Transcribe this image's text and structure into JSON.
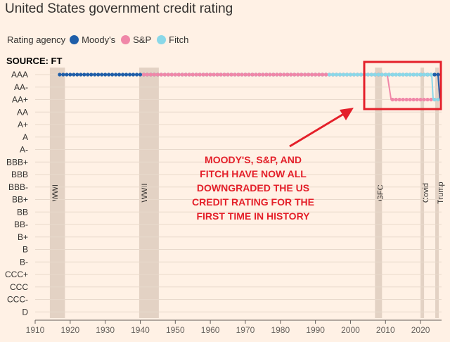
{
  "title": "United States government credit rating",
  "legend": {
    "title": "Rating agency",
    "items": [
      {
        "label": "Moody's",
        "color": "#1f5ea8"
      },
      {
        "label": "S&P",
        "color": "#f087a8"
      },
      {
        "label": "Fitch",
        "color": "#8ad8e8"
      }
    ]
  },
  "source": "SOURCE: FT",
  "annotation": {
    "lines": [
      "MOODY'S, S&P, AND",
      "FITCH HAVE NOW ALL",
      "DOWNGRADED THE US",
      "CREDIT RATING FOR THE",
      "FIRST TIME IN HISTORY"
    ],
    "color": "#e4202a"
  },
  "chart_data": {
    "type": "line",
    "title": "United States government credit rating",
    "xlim": [
      1910,
      2026
    ],
    "x_ticks": [
      1910,
      1920,
      1930,
      1940,
      1950,
      1960,
      1970,
      1980,
      1990,
      2000,
      2010,
      2020
    ],
    "y_categories": [
      "AAA",
      "AA-",
      "AA+",
      "AA",
      "A+",
      "A",
      "A-",
      "BBB+",
      "BBB",
      "BBB-",
      "BB+",
      "BB",
      "BB-",
      "B+",
      "B",
      "B-",
      "CCC+",
      "CCC",
      "CCC-",
      "D"
    ],
    "series": [
      {
        "name": "Moody's",
        "color": "#1f5ea8",
        "points": [
          [
            1917,
            "AAA"
          ],
          [
            2022,
            "AAA"
          ],
          [
            2024,
            "AAA"
          ],
          [
            2025,
            "AAA"
          ],
          [
            2025.5,
            "AA+"
          ]
        ]
      },
      {
        "name": "S&P",
        "color": "#f087a8",
        "points": [
          [
            1941,
            "AAA"
          ],
          [
            2010.5,
            "AAA"
          ],
          [
            2011.6,
            "AA+"
          ],
          [
            2024,
            "AA+"
          ]
        ]
      },
      {
        "name": "Fitch",
        "color": "#8ad8e8",
        "points": [
          [
            1994,
            "AAA"
          ],
          [
            2023.2,
            "AAA"
          ],
          [
            2023.6,
            "AA+"
          ],
          [
            2025.5,
            "AA+"
          ]
        ]
      }
    ],
    "events": [
      {
        "label": "WWI",
        "start": 1914.2,
        "end": 1918.5
      },
      {
        "label": "WWII",
        "start": 1939.7,
        "end": 1945.3
      },
      {
        "label": "GFC",
        "start": 2007,
        "end": 2009
      },
      {
        "label": "Covid",
        "start": 2020,
        "end": 2021
      },
      {
        "label": "Trump",
        "start": 2024.2,
        "end": 2025.2
      }
    ]
  }
}
